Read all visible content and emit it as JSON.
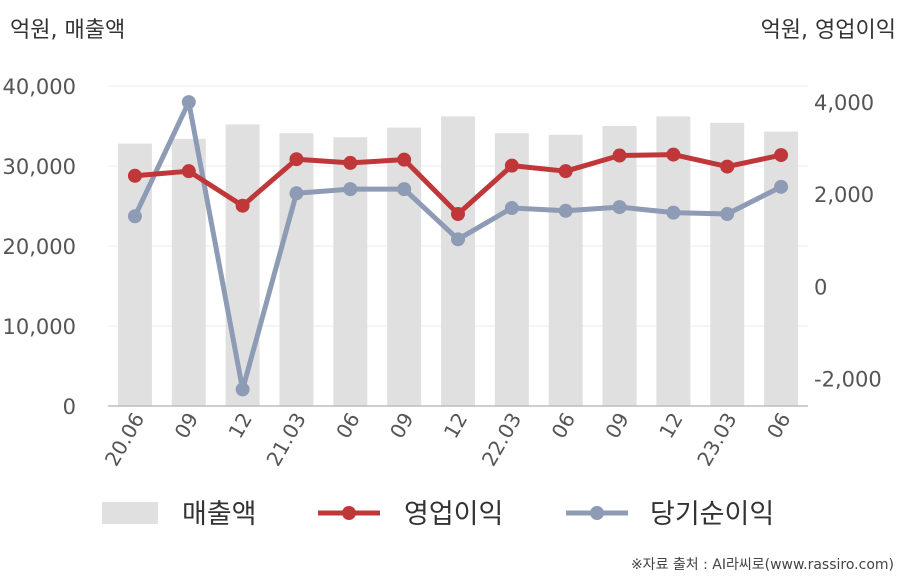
{
  "left_unit": "억원, 매출액",
  "right_unit": "억원, 영업이익",
  "source": "※자료 출처 : AI라씨로(www.rassiro.com)",
  "chart_data": {
    "type": "bar+line",
    "categories": [
      "20.06",
      "09",
      "12",
      "21.03",
      "06",
      "09",
      "12",
      "22.03",
      "06",
      "09",
      "12",
      "23.03",
      "06"
    ],
    "left_axis": {
      "ticks": [
        "0",
        "10,000",
        "20,000",
        "30,000",
        "40,000"
      ],
      "tick_values": [
        0,
        10000,
        20000,
        30000,
        40000
      ],
      "ylim": [
        0,
        40000
      ]
    },
    "right_axis": {
      "ticks": [
        "-2,000",
        "0",
        "2,000",
        "4,000"
      ],
      "tick_values": [
        -2000,
        0,
        2000,
        4000
      ],
      "ylim": [
        -2600,
        4350
      ]
    },
    "grid": true,
    "legend_position": "bottom",
    "series": [
      {
        "name": "매출액",
        "type": "bar",
        "axis": "left",
        "color": "#e0e0e0",
        "values": [
          32800,
          33400,
          35200,
          34100,
          33600,
          34800,
          36200,
          34100,
          33900,
          35000,
          36200,
          35400,
          34300
        ]
      },
      {
        "name": "영업이익",
        "type": "line",
        "axis": "right",
        "color": "#c0373a",
        "values": [
          2400,
          2500,
          1750,
          2760,
          2680,
          2750,
          1570,
          2620,
          2500,
          2840,
          2860,
          2600,
          2850
        ]
      },
      {
        "name": "당기순이익",
        "type": "line",
        "axis": "right",
        "color": "#8e9bb5",
        "values": [
          1520,
          4000,
          -2240,
          2020,
          2110,
          2110,
          1020,
          1700,
          1640,
          1720,
          1600,
          1570,
          2160
        ]
      }
    ]
  }
}
